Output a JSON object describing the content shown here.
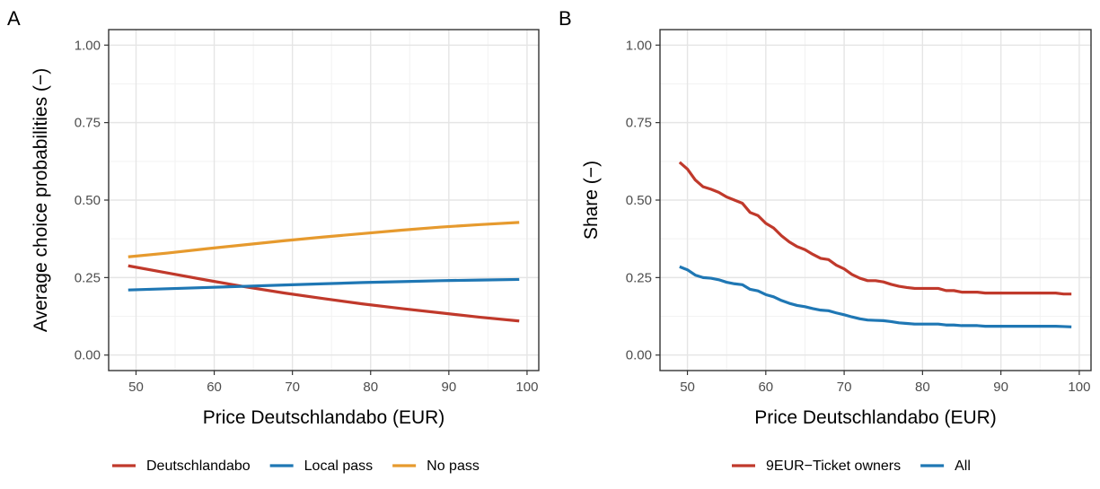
{
  "colors": {
    "deutschlandabo": "#c0392b",
    "local_pass": "#1f77b4",
    "no_pass": "#e69a2e",
    "grid_major": "#e5e5e5",
    "grid_minor": "#f2f2f2",
    "frame": "#333333"
  },
  "chart_data": [
    {
      "panel": "A",
      "type": "line",
      "xlabel": "Price Deutschlandabo (EUR)",
      "ylabel": "Average choice probabilities (−)",
      "xlim": [
        46.5,
        101.5
      ],
      "ylim": [
        -0.05,
        1.05
      ],
      "xticks": [
        50,
        60,
        70,
        80,
        90,
        100
      ],
      "xtick_labels": [
        "50",
        "60",
        "70",
        "80",
        "90",
        "100"
      ],
      "yticks": [
        0,
        0.25,
        0.5,
        0.75,
        1.0
      ],
      "ytick_labels": [
        "0.00",
        "0.25",
        "0.50",
        "0.75",
        "1.00"
      ],
      "grid": true,
      "legend_position": "bottom",
      "x": [
        49,
        54,
        59,
        64,
        69,
        74,
        79,
        84,
        89,
        94,
        99
      ],
      "series": [
        {
          "name": "Deutschlandabo",
          "color_key": "deutschlandabo",
          "values": [
            0.288,
            0.265,
            0.242,
            0.22,
            0.2,
            0.182,
            0.165,
            0.15,
            0.136,
            0.122,
            0.11
          ]
        },
        {
          "name": "Local pass",
          "color_key": "local_pass",
          "values": [
            0.21,
            0.214,
            0.218,
            0.222,
            0.226,
            0.23,
            0.234,
            0.237,
            0.24,
            0.242,
            0.244
          ]
        },
        {
          "name": "No pass",
          "color_key": "no_pass",
          "values": [
            0.317,
            0.329,
            0.343,
            0.356,
            0.369,
            0.381,
            0.392,
            0.403,
            0.413,
            0.421,
            0.428
          ]
        }
      ]
    },
    {
      "panel": "B",
      "type": "line",
      "xlabel": "Price Deutschlandabo (EUR)",
      "ylabel": "Share (−)",
      "xlim": [
        46.5,
        101.5
      ],
      "ylim": [
        -0.05,
        1.05
      ],
      "xticks": [
        50,
        60,
        70,
        80,
        90,
        100
      ],
      "xtick_labels": [
        "50",
        "60",
        "70",
        "80",
        "90",
        "100"
      ],
      "yticks": [
        0,
        0.25,
        0.5,
        0.75,
        1.0
      ],
      "ytick_labels": [
        "0.00",
        "0.25",
        "0.50",
        "0.75",
        "1.00"
      ],
      "grid": true,
      "legend_position": "bottom",
      "x": [
        49,
        50,
        51,
        52,
        53,
        54,
        55,
        56,
        57,
        58,
        59,
        60,
        61,
        62,
        63,
        64,
        65,
        66,
        67,
        68,
        69,
        70,
        71,
        72,
        73,
        74,
        75,
        76,
        77,
        78,
        79,
        80,
        81,
        82,
        83,
        84,
        85,
        86,
        87,
        88,
        89,
        90,
        91,
        92,
        93,
        94,
        95,
        96,
        97,
        98,
        99
      ],
      "series": [
        {
          "name": "9EUR−Ticket owners",
          "color_key": "deutschlandabo",
          "values": [
            0.622,
            0.6,
            0.565,
            0.543,
            0.535,
            0.525,
            0.51,
            0.5,
            0.49,
            0.46,
            0.45,
            0.425,
            0.41,
            0.385,
            0.365,
            0.35,
            0.34,
            0.325,
            0.312,
            0.308,
            0.29,
            0.278,
            0.26,
            0.248,
            0.24,
            0.24,
            0.236,
            0.228,
            0.222,
            0.218,
            0.215,
            0.215,
            0.215,
            0.215,
            0.208,
            0.208,
            0.203,
            0.203,
            0.203,
            0.2,
            0.2,
            0.2,
            0.2,
            0.2,
            0.2,
            0.2,
            0.2,
            0.2,
            0.2,
            0.197,
            0.197
          ]
        },
        {
          "name": "All",
          "color_key": "local_pass",
          "values": [
            0.285,
            0.275,
            0.258,
            0.25,
            0.248,
            0.243,
            0.235,
            0.23,
            0.227,
            0.212,
            0.207,
            0.195,
            0.188,
            0.176,
            0.167,
            0.16,
            0.156,
            0.15,
            0.145,
            0.143,
            0.136,
            0.13,
            0.123,
            0.117,
            0.113,
            0.112,
            0.111,
            0.108,
            0.104,
            0.102,
            0.1,
            0.1,
            0.1,
            0.1,
            0.097,
            0.097,
            0.095,
            0.095,
            0.095,
            0.093,
            0.093,
            0.093,
            0.093,
            0.093,
            0.093,
            0.093,
            0.093,
            0.093,
            0.093,
            0.092,
            0.091
          ]
        }
      ]
    }
  ]
}
